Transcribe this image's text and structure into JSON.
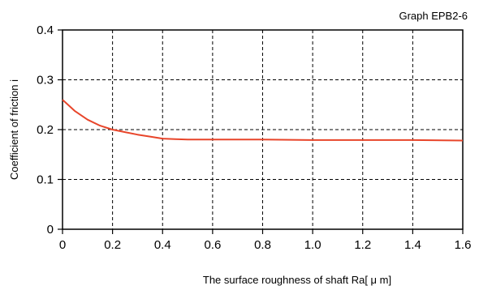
{
  "chart_data": {
    "type": "line",
    "title": "Graph EPB2-6",
    "xlabel": "The surface roughness of shaft  Ra[ μ m]",
    "ylabel": "Coefficient of friction i",
    "xlim": [
      0,
      1.6
    ],
    "ylim": [
      0,
      0.4
    ],
    "x_ticks": [
      "0",
      "0.2",
      "0.4",
      "0.6",
      "0.8",
      "1.0",
      "1.2",
      "1.4",
      "1.6"
    ],
    "y_ticks": [
      "0",
      "0.1",
      "0.2",
      "0.3",
      "0.4"
    ],
    "grid": true,
    "legend": "none",
    "series": [
      {
        "color": "#e8452a",
        "x": [
          0,
          0.05,
          0.1,
          0.15,
          0.2,
          0.25,
          0.3,
          0.35,
          0.4,
          0.45,
          0.5,
          0.6,
          0.8,
          1.0,
          1.2,
          1.4,
          1.6
        ],
        "y": [
          0.26,
          0.237,
          0.22,
          0.208,
          0.2,
          0.195,
          0.19,
          0.186,
          0.182,
          0.181,
          0.18,
          0.18,
          0.18,
          0.179,
          0.179,
          0.179,
          0.178
        ]
      }
    ]
  }
}
